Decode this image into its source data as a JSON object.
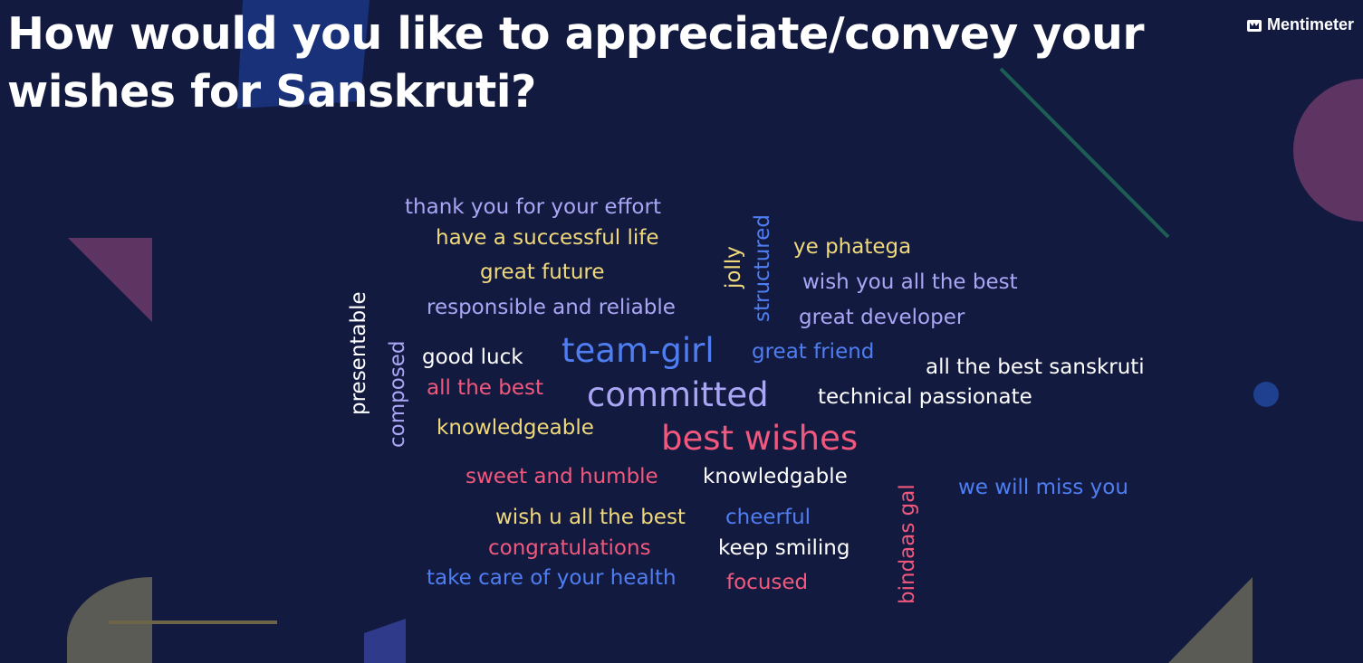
{
  "title": "How would you like to appreciate/convey your\nwishes for Sanskruti?",
  "brand": {
    "name": "Mentimeter",
    "icon": "mentimeter-logo-icon"
  },
  "colors": {
    "background": "#131a3f",
    "white": "#ffffff",
    "lavender": "#a9a6f5",
    "yellow": "#f0d97a",
    "blue": "#4f7ef2",
    "pink": "#f0587e"
  },
  "words": [
    {
      "text": "thank you for your effort",
      "color": "lavender"
    },
    {
      "text": "have a successful life",
      "color": "yellow"
    },
    {
      "text": "great future",
      "color": "yellow"
    },
    {
      "text": "responsible and reliable",
      "color": "lavender"
    },
    {
      "text": "presentable",
      "color": "white"
    },
    {
      "text": "composed",
      "color": "lavender"
    },
    {
      "text": "good luck",
      "color": "white"
    },
    {
      "text": "all the best",
      "color": "pink"
    },
    {
      "text": "knowledgeable",
      "color": "yellow"
    },
    {
      "text": "team-girl",
      "color": "blue"
    },
    {
      "text": "committed",
      "color": "lavender"
    },
    {
      "text": "best wishes",
      "color": "pink"
    },
    {
      "text": "jolly",
      "color": "yellow"
    },
    {
      "text": "structured",
      "color": "blue"
    },
    {
      "text": "ye phatega",
      "color": "yellow"
    },
    {
      "text": "wish you all the best",
      "color": "lavender"
    },
    {
      "text": "great developer",
      "color": "lavender"
    },
    {
      "text": "great friend",
      "color": "blue"
    },
    {
      "text": "all the best sanskruti",
      "color": "white"
    },
    {
      "text": "technical passionate",
      "color": "white"
    },
    {
      "text": "sweet and humble",
      "color": "pink"
    },
    {
      "text": "knowledgable",
      "color": "white"
    },
    {
      "text": "wish u all the best",
      "color": "yellow"
    },
    {
      "text": "cheerful",
      "color": "blue"
    },
    {
      "text": "congratulations",
      "color": "pink"
    },
    {
      "text": "keep smiling",
      "color": "white"
    },
    {
      "text": "take care of your health",
      "color": "blue"
    },
    {
      "text": "focused",
      "color": "pink"
    },
    {
      "text": "bindaas gal",
      "color": "pink"
    },
    {
      "text": "we will miss you",
      "color": "blue"
    }
  ]
}
